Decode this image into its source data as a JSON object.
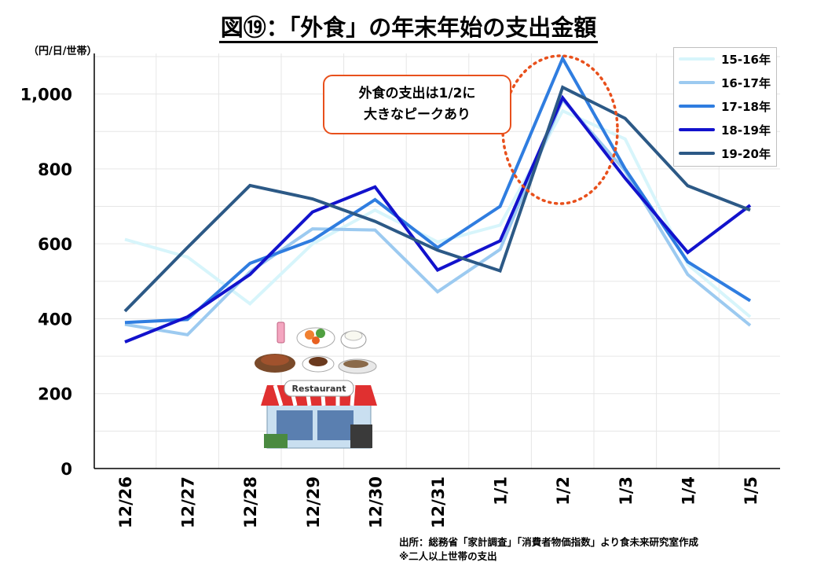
{
  "title": "図⑲：「外食」の年末年始の支出金額",
  "unit_label": "（円/日/世帯）",
  "callout": {
    "line1": "外食の支出は1/2に",
    "line2": "大きなピークあり"
  },
  "source": {
    "line1": "出所：総務省「家計調査」「消費者物価指数」より食未来研究室作成",
    "line2": "※二人以上世帯の支出"
  },
  "chart_data": {
    "type": "line",
    "categories": [
      "12/26",
      "12/27",
      "12/28",
      "12/29",
      "12/30",
      "12/31",
      "1/1",
      "1/2",
      "1/3",
      "1/4",
      "1/5"
    ],
    "ylim": [
      0,
      1100
    ],
    "yticks": [
      0,
      200,
      400,
      600,
      800,
      1000
    ],
    "ytick_labels": [
      "0",
      "200",
      "400",
      "600",
      "800",
      "1,000"
    ],
    "grid": true,
    "legend_position": "top-right",
    "series": [
      {
        "name": "15-16年",
        "color": "#d7f5fb",
        "values": [
          612,
          565,
          440,
          600,
          690,
          605,
          650,
          955,
          880,
          545,
          405
        ]
      },
      {
        "name": "16-17年",
        "color": "#9ccaf0",
        "values": [
          385,
          357,
          525,
          640,
          637,
          472,
          585,
          985,
          795,
          518,
          382
        ]
      },
      {
        "name": "17-18年",
        "color": "#2f7de0",
        "values": [
          390,
          398,
          548,
          610,
          718,
          590,
          700,
          1095,
          800,
          552,
          448
        ]
      },
      {
        "name": "18-19年",
        "color": "#1212cc",
        "values": [
          338,
          405,
          518,
          685,
          752,
          530,
          608,
          990,
          775,
          577,
          703
        ]
      },
      {
        "name": "19-20年",
        "color": "#2c5986",
        "values": [
          420,
          590,
          756,
          720,
          660,
          583,
          528,
          1018,
          935,
          755,
          690
        ]
      }
    ]
  }
}
